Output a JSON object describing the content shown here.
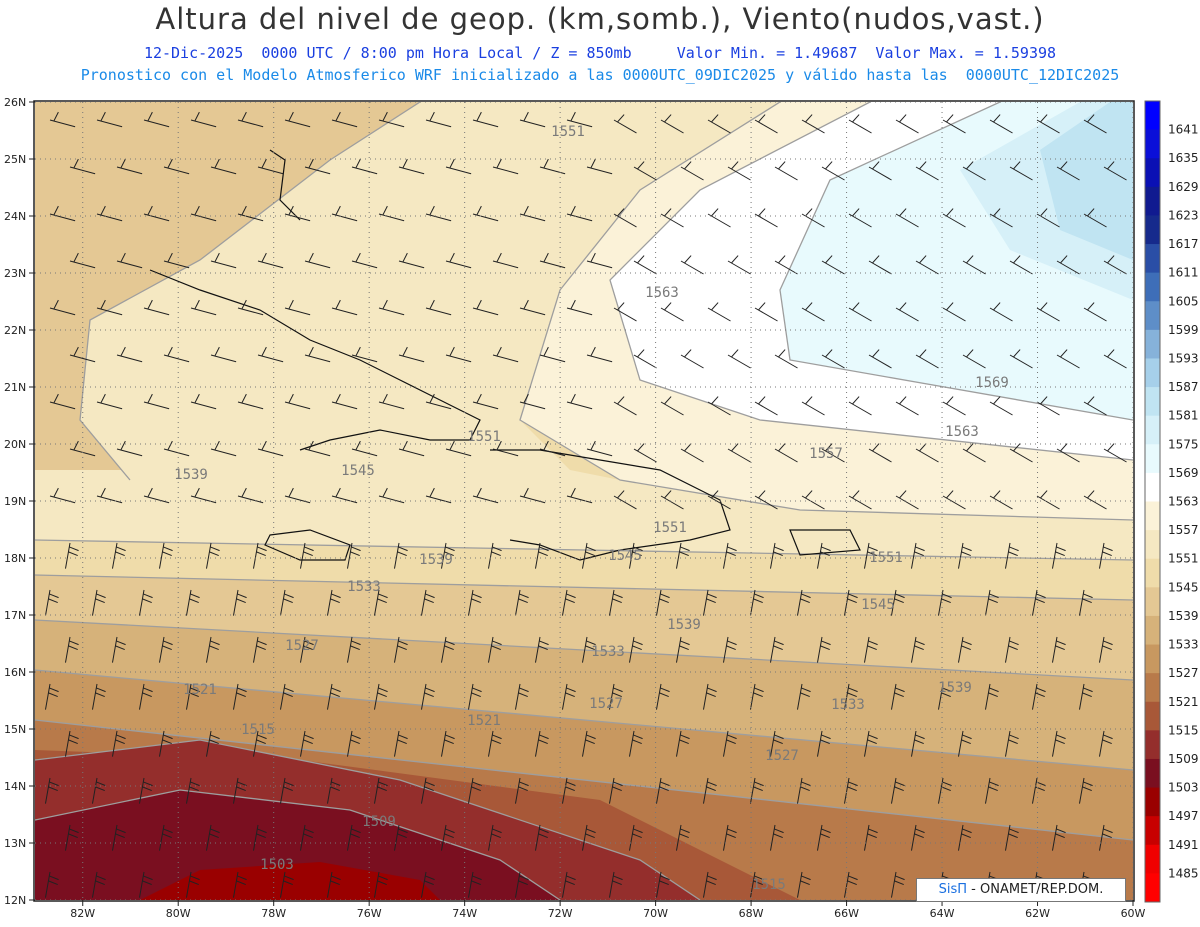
{
  "header": {
    "title": "Altura del nivel de geop. (km,somb.), Viento(nudos,vast.)",
    "line1": "12-Dic-2025  0000 UTC / 8:00 pm Hora Local / Z = 850mb     Valor Min. = 1.49687  Valor Max. = 1.59398",
    "line2": "Pronostico con el Modelo Atmosferico WRF inicializado a las 0000UTC_09DIC2025 y válido hasta las  0000UTC_12DIC2025"
  },
  "map": {
    "lat_labels": [
      "26N",
      "25N",
      "24N",
      "23N",
      "22N",
      "21N",
      "20N",
      "19N",
      "18N",
      "17N",
      "16N",
      "15N",
      "14N",
      "13N",
      "12N"
    ],
    "lon_labels": [
      "82W",
      "80W",
      "78W",
      "76W",
      "74W",
      "72W",
      "70W",
      "68W",
      "66W",
      "64W",
      "62W",
      "60W"
    ],
    "contour_labels": [
      "1551",
      "1563",
      "1569",
      "1563",
      "1557",
      "1551",
      "1545",
      "1539",
      "1551",
      "1551",
      "1545",
      "1539",
      "1533",
      "1539",
      "1545",
      "1539",
      "1533",
      "1527",
      "1533",
      "1527",
      "1521",
      "1527",
      "1521",
      "1515",
      "1509",
      "1503",
      "1515"
    ]
  },
  "colorbar": {
    "labels": [
      "1641",
      "1635",
      "1629",
      "1623",
      "1617",
      "1611",
      "1605",
      "1599",
      "1593",
      "1587",
      "1581",
      "1575",
      "1569",
      "1563",
      "1557",
      "1551",
      "1545",
      "1539",
      "1533",
      "1527",
      "1521",
      "1515",
      "1509",
      "1503",
      "1497",
      "1491",
      "1485"
    ],
    "colors": [
      "#0000ff",
      "#0a0fd8",
      "#0a10b4",
      "#101a90",
      "#162a8c",
      "#2a4ea6",
      "#3e6eb8",
      "#5e8ec8",
      "#86b2da",
      "#a6d0ea",
      "#c0e4f2",
      "#d6f0f8",
      "#e8fafd",
      "#ffffff",
      "#fbf2d8",
      "#f5e8c2",
      "#efdcaa",
      "#e4c894",
      "#d6b27a",
      "#c89860",
      "#b87a4a",
      "#a85838",
      "#942e2c",
      "#7a0f20",
      "#9a0000",
      "#c80000",
      "#f00000"
    ]
  },
  "credit": {
    "brand": "SisΠ",
    "text": "- ONAMET/REP.DOM."
  }
}
